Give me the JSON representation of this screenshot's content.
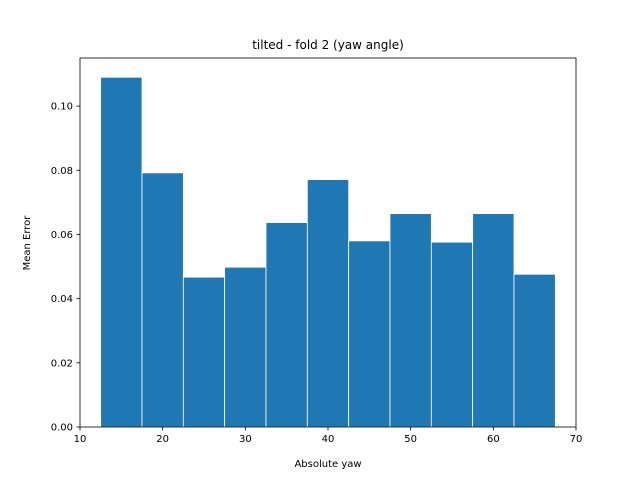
{
  "chart_data": {
    "type": "bar",
    "title": "tilted - fold 2 (yaw angle)",
    "xlabel": "Absolute yaw",
    "ylabel": "Mean Error",
    "bar_color": "#1f77b4",
    "bar_edge_color": "#ffffff",
    "xlim": [
      10,
      70
    ],
    "ylim": [
      0,
      0.115
    ],
    "xticks": [
      10,
      20,
      30,
      40,
      50,
      60,
      70
    ],
    "xtick_labels": [
      "10",
      "20",
      "30",
      "40",
      "50",
      "60",
      "70"
    ],
    "yticks": [
      0,
      0.02,
      0.04,
      0.06,
      0.08,
      0.1
    ],
    "ytick_labels": [
      "0.00",
      "0.02",
      "0.04",
      "0.06",
      "0.08",
      "0.10"
    ],
    "bins": [
      {
        "x0": 12.5,
        "x1": 17.5,
        "value": 0.109
      },
      {
        "x0": 17.5,
        "x1": 22.5,
        "value": 0.0792
      },
      {
        "x0": 22.5,
        "x1": 27.5,
        "value": 0.0467
      },
      {
        "x0": 27.5,
        "x1": 32.5,
        "value": 0.0498
      },
      {
        "x0": 32.5,
        "x1": 37.5,
        "value": 0.0637
      },
      {
        "x0": 37.5,
        "x1": 42.5,
        "value": 0.0771
      },
      {
        "x0": 42.5,
        "x1": 47.5,
        "value": 0.058
      },
      {
        "x0": 47.5,
        "x1": 52.5,
        "value": 0.0665
      },
      {
        "x0": 52.5,
        "x1": 57.5,
        "value": 0.0576
      },
      {
        "x0": 57.5,
        "x1": 62.5,
        "value": 0.0665
      },
      {
        "x0": 62.5,
        "x1": 67.5,
        "value": 0.0476
      }
    ],
    "grid": false,
    "legend": false
  }
}
